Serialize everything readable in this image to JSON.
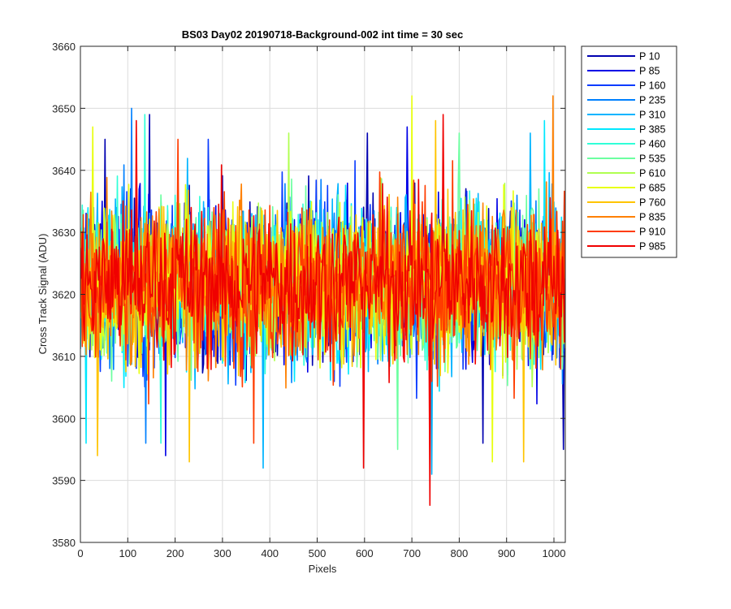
{
  "chart_data": {
    "type": "line",
    "title": "BS03 Day02 20190718-Background-002 int time = 30 sec",
    "xlabel": "Pixels",
    "ylabel": "Cross Track Signal (ADU)",
    "xlim": [
      0,
      1024
    ],
    "ylim": [
      3580,
      3660
    ],
    "xticks": [
      0,
      100,
      200,
      300,
      400,
      500,
      600,
      700,
      800,
      900,
      1000
    ],
    "yticks": [
      3580,
      3590,
      3600,
      3610,
      3620,
      3630,
      3640,
      3650,
      3660
    ],
    "grid": true,
    "legend_position": "outside-right",
    "series": [
      {
        "name": "P 10",
        "color": "#0000b0",
        "peaks": [
          [
            52,
            3645
          ],
          [
            145,
            3649
          ],
          [
            605,
            3646
          ]
        ],
        "troughs": [
          [
            1020,
            3595
          ],
          [
            850,
            3596
          ]
        ]
      },
      {
        "name": "P 85",
        "color": "#0000e6",
        "peaks": [
          [
            690,
            3647
          ]
        ],
        "troughs": [
          [
            180,
            3594
          ]
        ]
      },
      {
        "name": "P 160",
        "color": "#0a3cff",
        "peaks": [
          [
            270,
            3645
          ]
        ],
        "troughs": []
      },
      {
        "name": "P 235",
        "color": "#0080ff",
        "peaks": [
          [
            108,
            3650
          ]
        ],
        "troughs": [
          [
            138,
            3596
          ]
        ]
      },
      {
        "name": "P 310",
        "color": "#00b4ff",
        "peaks": [
          [
            950,
            3646
          ]
        ],
        "troughs": [
          [
            385,
            3592
          ],
          [
            741,
            3591
          ]
        ]
      },
      {
        "name": "P 385",
        "color": "#00e8ff",
        "peaks": [
          [
            980,
            3648
          ]
        ],
        "troughs": [
          [
            12,
            3596
          ]
        ]
      },
      {
        "name": "P 460",
        "color": "#30ffd8",
        "peaks": [
          [
            135,
            3649
          ]
        ],
        "troughs": [
          [
            170,
            3596
          ]
        ]
      },
      {
        "name": "P 535",
        "color": "#6cffa0",
        "peaks": [
          [
            800,
            3646
          ]
        ],
        "troughs": [
          [
            670,
            3595
          ]
        ]
      },
      {
        "name": "P 610",
        "color": "#b0ff50",
        "peaks": [
          [
            440,
            3646
          ]
        ],
        "troughs": []
      },
      {
        "name": "P 685",
        "color": "#e8ff10",
        "peaks": [
          [
            25,
            3647
          ],
          [
            700,
            3652
          ]
        ],
        "troughs": [
          [
            870,
            3593
          ]
        ]
      },
      {
        "name": "P 760",
        "color": "#ffc400",
        "peaks": [
          [
            750,
            3648
          ]
        ],
        "troughs": [
          [
            36,
            3594
          ],
          [
            230,
            3593
          ],
          [
            935,
            3593
          ]
        ]
      },
      {
        "name": "P 835",
        "color": "#ff8000",
        "peaks": [
          [
            998,
            3652
          ]
        ],
        "troughs": []
      },
      {
        "name": "P 910",
        "color": "#ff3c00",
        "peaks": [
          [
            205,
            3645
          ]
        ],
        "troughs": [
          [
            365,
            3596
          ]
        ]
      },
      {
        "name": "P 985",
        "color": "#f00000",
        "peaks": [
          [
            765,
            3649
          ],
          [
            118,
            3648
          ]
        ],
        "troughs": [
          [
            598,
            3592
          ],
          [
            737,
            3586
          ]
        ]
      }
    ],
    "noise_note": "Each series is ~1024 points of background noise, mean ≈3622 ADU, std ≈7-8 ADU; extremes listed as peaks/troughs"
  }
}
